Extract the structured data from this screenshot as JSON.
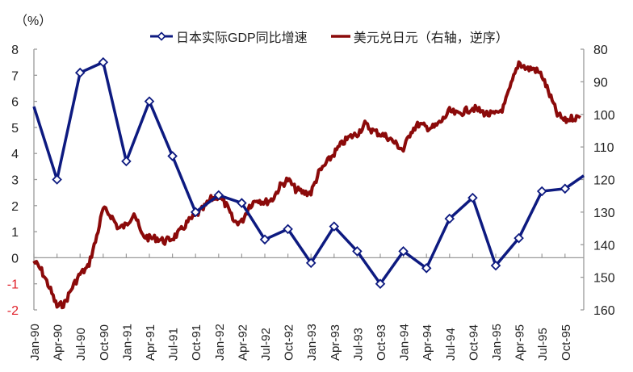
{
  "chart_data": {
    "type": "line",
    "title": "",
    "unit_label": "（%）",
    "x_tick_labels": [
      "Jan-90",
      "Apr-90",
      "Jul-90",
      "Oct-90",
      "Jan-91",
      "Apr-91",
      "Jul-91",
      "Oct-91",
      "Jan-92",
      "Apr-92",
      "Jul-92",
      "Oct-92",
      "Jan-93",
      "Apr-93",
      "Jul-93",
      "Oct-93",
      "Jan-94",
      "Apr-94",
      "Jul-94",
      "Oct-94",
      "Jan-95",
      "Apr-95",
      "Jul-95",
      "Oct-95"
    ],
    "y_left": {
      "min": -2,
      "max": 8,
      "step": 1,
      "ticks": [
        "8",
        "7",
        "6",
        "5",
        "4",
        "3",
        "2",
        "1",
        "0",
        "-1",
        "-2"
      ],
      "negative_color": "#e0202a"
    },
    "y_right": {
      "min": 80,
      "max": 160,
      "step": 10,
      "inverted": true,
      "ticks": [
        "80",
        "90",
        "100",
        "110",
        "120",
        "130",
        "140",
        "150",
        "160"
      ]
    },
    "legend": {
      "position": "top"
    },
    "series": [
      {
        "name": "日本实际GDP同比增速",
        "axis": "left",
        "color": "#0d1a80",
        "marker": "diamond-open",
        "x": [
          "Jan-90",
          "Apr-90",
          "Jul-90",
          "Oct-90",
          "Jan-91",
          "Apr-91",
          "Jul-91",
          "Oct-91",
          "Jan-92",
          "Apr-92",
          "Jul-92",
          "Oct-92",
          "Jan-93",
          "Apr-93",
          "Jul-93",
          "Oct-93",
          "Jan-94",
          "Apr-94",
          "Jul-94",
          "Oct-94",
          "Jan-95",
          "Apr-95",
          "Jul-95",
          "Oct-95",
          "Jan-96"
        ],
        "values": [
          5.8,
          3.0,
          7.1,
          7.5,
          3.7,
          6.0,
          3.9,
          1.75,
          2.4,
          2.1,
          0.7,
          1.1,
          -0.2,
          1.2,
          0.25,
          -1.0,
          0.25,
          -0.4,
          1.5,
          2.3,
          -0.3,
          0.75,
          2.55,
          2.65,
          3.15
        ]
      },
      {
        "name": "美元兑日元（右轴，逆序）",
        "axis": "right",
        "color": "#8b0a0a",
        "marker": "none",
        "x": [
          "Jan-90",
          "Feb-90",
          "Mar-90",
          "Apr-90",
          "May-90",
          "Jun-90",
          "Jul-90",
          "Aug-90",
          "Sep-90",
          "Oct-90",
          "Nov-90",
          "Dec-90",
          "Jan-91",
          "Feb-91",
          "Mar-91",
          "Apr-91",
          "May-91",
          "Jun-91",
          "Jul-91",
          "Aug-91",
          "Sep-91",
          "Oct-91",
          "Nov-91",
          "Dec-91",
          "Jan-92",
          "Feb-92",
          "Mar-92",
          "Apr-92",
          "May-92",
          "Jun-92",
          "Jul-92",
          "Aug-92",
          "Sep-92",
          "Oct-92",
          "Nov-92",
          "Dec-92",
          "Jan-93",
          "Feb-93",
          "Mar-93",
          "Apr-93",
          "May-93",
          "Jun-93",
          "Jul-93",
          "Aug-93",
          "Sep-93",
          "Oct-93",
          "Nov-93",
          "Dec-93",
          "Jan-94",
          "Feb-94",
          "Mar-94",
          "Apr-94",
          "May-94",
          "Jun-94",
          "Jul-94",
          "Aug-94",
          "Sep-94",
          "Oct-94",
          "Nov-94",
          "Dec-94",
          "Jan-95",
          "Feb-95",
          "Mar-95",
          "Apr-95",
          "May-95",
          "Jun-95",
          "Jul-95",
          "Aug-95",
          "Sep-95",
          "Oct-95",
          "Nov-95",
          "Dec-95"
        ],
        "values": [
          145,
          148,
          153,
          159,
          158,
          153,
          149,
          147,
          139,
          129,
          131,
          135,
          134,
          130,
          137,
          138,
          138,
          139,
          138,
          136,
          133,
          131,
          129,
          126,
          125,
          128,
          133,
          133,
          128,
          126,
          127,
          126,
          122,
          120,
          123,
          124,
          124,
          118,
          115,
          112,
          109,
          107,
          106,
          103,
          105,
          106,
          107,
          109,
          111,
          105,
          103,
          104,
          104,
          102,
          99,
          100,
          99,
          98,
          99,
          100,
          100,
          98,
          91,
          84,
          86,
          86,
          88,
          94,
          100,
          102,
          101,
          101
        ]
      }
    ]
  },
  "legend": {
    "items": [
      {
        "label": "日本实际GDP同比增速"
      },
      {
        "label": "美元兑日元（右轴，逆序）"
      }
    ]
  }
}
